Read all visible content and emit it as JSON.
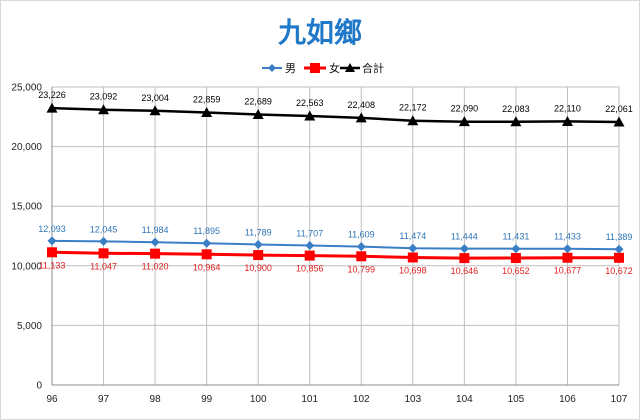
{
  "title": "九如鄉",
  "colors": {
    "male": "#3a7ec6",
    "female": "#ff0000",
    "total": "#000000",
    "title": "#1f78c8",
    "grid": "#bfbfbf"
  },
  "chart_data": {
    "type": "line",
    "title": "九如鄉",
    "categories": [
      "96",
      "97",
      "98",
      "99",
      "100",
      "101",
      "102",
      "103",
      "104",
      "105",
      "106",
      "107"
    ],
    "ylim": [
      0,
      25000
    ],
    "yticks": [
      0,
      5000,
      10000,
      15000,
      20000,
      25000
    ],
    "ytick_labels": [
      "0",
      "5,000",
      "10,000",
      "15,000",
      "20,000",
      "25,000"
    ],
    "legend_position": "top-center",
    "grid": true,
    "series": [
      {
        "name": "男",
        "marker": "diamond",
        "values": [
          12093,
          12045,
          11984,
          11895,
          11789,
          11707,
          11609,
          11474,
          11444,
          11431,
          11433,
          11389
        ],
        "labels": [
          "12,093",
          "12,045",
          "11,984",
          "11,895",
          "11,789",
          "11,707",
          "11,609",
          "11,474",
          "11,444",
          "11,431",
          "11,433",
          "11,389"
        ]
      },
      {
        "name": "女",
        "marker": "square",
        "values": [
          11133,
          11047,
          11020,
          10964,
          10900,
          10856,
          10799,
          10698,
          10646,
          10652,
          10677,
          10672
        ],
        "labels": [
          "11,133",
          "11,047",
          "11,020",
          "10,964",
          "10,900",
          "10,856",
          "10,799",
          "10,698",
          "10,646",
          "10,652",
          "10,677",
          "10,672"
        ]
      },
      {
        "name": "合計",
        "marker": "triangle",
        "values": [
          23226,
          23092,
          23004,
          22859,
          22689,
          22563,
          22408,
          22172,
          22090,
          22083,
          22110,
          22061
        ],
        "labels": [
          "23,226",
          "23,092",
          "23,004",
          "22,859",
          "22,689",
          "22,563",
          "22,408",
          "22,172",
          "22,090",
          "22,083",
          "22,110",
          "22,061"
        ]
      }
    ]
  }
}
